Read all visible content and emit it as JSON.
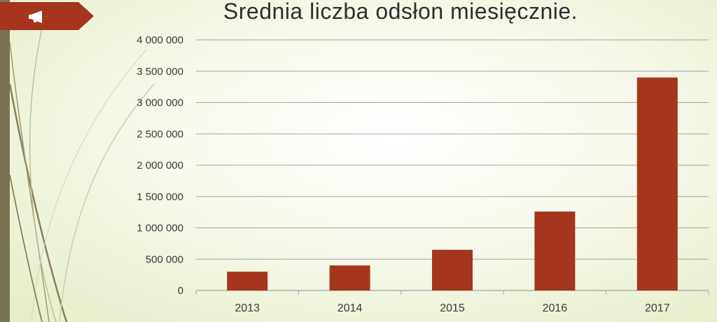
{
  "title": "Srednia liczba odsłon miesięcznie.",
  "colors": {
    "bar": "#a5351c",
    "ribbon": "#a5351c",
    "grid": "#a6a6a6",
    "text": "#3a3a3a"
  },
  "icons": {
    "ribbon": "megaphone-icon"
  },
  "chart_data": {
    "type": "bar",
    "title": "Srednia liczba odsłon miesięcznie.",
    "categories": [
      "2013",
      "2014",
      "2015",
      "2016",
      "2017"
    ],
    "values": [
      300000,
      400000,
      650000,
      1260000,
      3400000
    ],
    "ylim": [
      0,
      4000000
    ],
    "yticks": [
      0,
      500000,
      1000000,
      1500000,
      2000000,
      2500000,
      3000000,
      3500000,
      4000000
    ],
    "ytick_labels": [
      "0",
      "500 000",
      "1 000 000",
      "1 500 000",
      "2 000 000",
      "2 500 000",
      "3 000 000",
      "3 500 000",
      "4 000 000"
    ],
    "xlabel": "",
    "ylabel": "",
    "grid": true,
    "legend": "none"
  }
}
